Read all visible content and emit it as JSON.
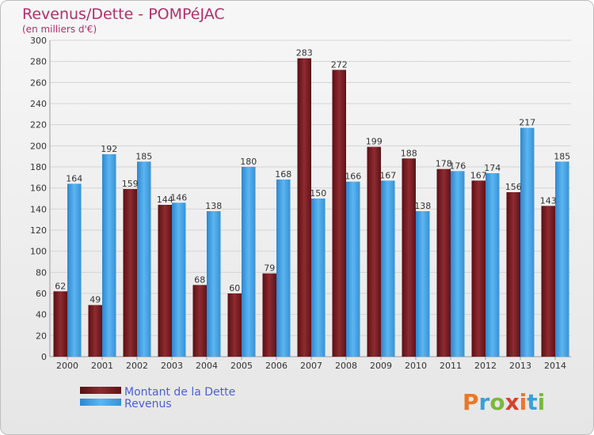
{
  "chart_data": {
    "type": "bar",
    "title": "Revenus/Dette - POMPéJAC",
    "subtitle": "(en milliers d'€)",
    "categories": [
      "2000",
      "2001",
      "2002",
      "2003",
      "2004",
      "2005",
      "2006",
      "2007",
      "2008",
      "2009",
      "2010",
      "2011",
      "2012",
      "2013",
      "2014"
    ],
    "series": [
      {
        "name": "Montant de la Dette",
        "values": [
          62,
          49,
          159,
          144,
          68,
          60,
          79,
          283,
          272,
          199,
          188,
          178,
          167,
          156,
          143
        ],
        "color": "#7d1f25"
      },
      {
        "name": "Revenus",
        "values": [
          164,
          192,
          185,
          146,
          138,
          180,
          168,
          150,
          166,
          167,
          138,
          176,
          174,
          217,
          185
        ],
        "color": "#3f9fe0"
      }
    ],
    "ylim": [
      0,
      300
    ],
    "yticks": [
      0,
      20,
      40,
      60,
      80,
      100,
      120,
      140,
      160,
      180,
      200,
      220,
      240,
      260,
      280,
      300
    ],
    "grid": true,
    "legend_position": "bottom-left"
  },
  "brand": {
    "logo_letters": [
      "P",
      "r",
      "o",
      "x",
      "i",
      "t",
      "i"
    ],
    "logo_colors": [
      "#e8782a",
      "#3aa0d8",
      "#7bb83a",
      "#d6402d",
      "#e8782a",
      "#3aa0d8",
      "#7bb83a"
    ]
  }
}
